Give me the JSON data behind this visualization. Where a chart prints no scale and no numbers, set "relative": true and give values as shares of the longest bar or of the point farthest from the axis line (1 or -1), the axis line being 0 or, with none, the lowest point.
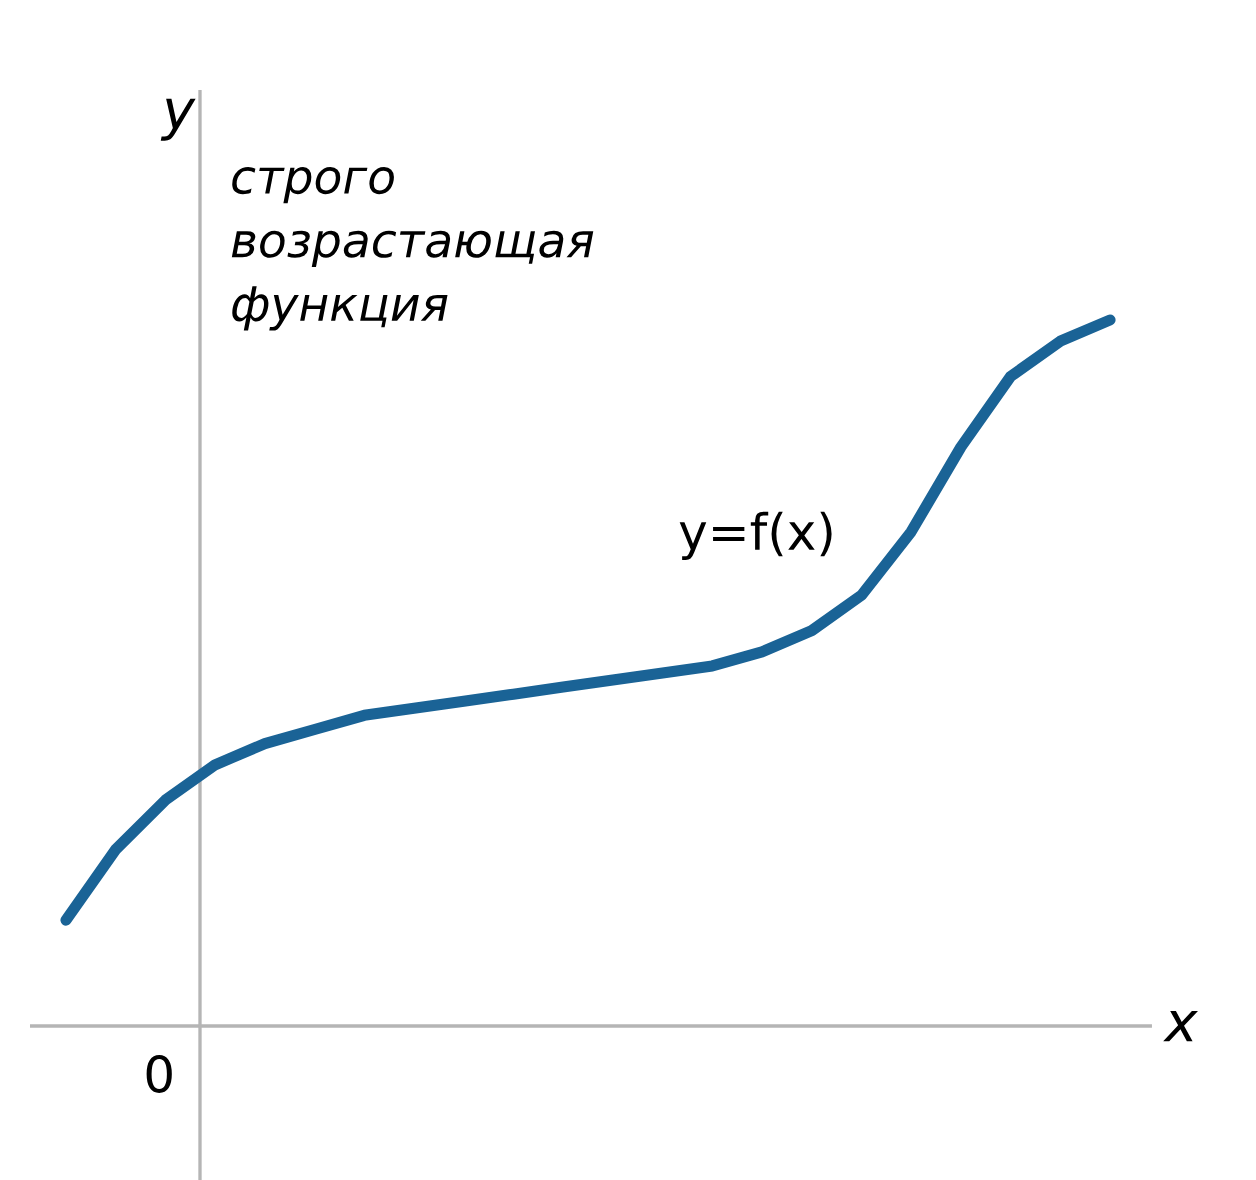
{
  "chart_data": {
    "type": "line",
    "relative": true,
    "xlabel": "x",
    "ylabel": "y",
    "categories": [
      null,
      null,
      null,
      null,
      null,
      null,
      null,
      null,
      null,
      null,
      null,
      null,
      null,
      null,
      null,
      null,
      null,
      null,
      null,
      null,
      null,
      null
    ],
    "series": [
      {
        "name": "y=f(x)",
        "color": "#1a6396",
        "values": [
          0.15,
          0.25,
          0.32,
          0.37,
          0.4,
          0.42,
          0.44,
          0.45,
          0.46,
          0.47,
          0.48,
          0.49,
          0.5,
          0.51,
          0.53,
          0.56,
          0.61,
          0.7,
          0.82,
          0.92,
          0.97,
          1.0
        ]
      }
    ],
    "annotations": [
      "0",
      "строго возрастающая функция"
    ],
    "line_style": "solid",
    "marker": "none",
    "grid": false,
    "legend": false
  }
}
